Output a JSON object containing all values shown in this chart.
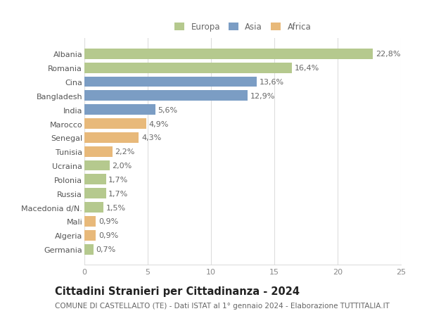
{
  "countries": [
    "Albania",
    "Romania",
    "Cina",
    "Bangladesh",
    "India",
    "Marocco",
    "Senegal",
    "Tunisia",
    "Ucraina",
    "Polonia",
    "Russia",
    "Macedonia d/N.",
    "Mali",
    "Algeria",
    "Germania"
  ],
  "values": [
    22.8,
    16.4,
    13.6,
    12.9,
    5.6,
    4.9,
    4.3,
    2.2,
    2.0,
    1.7,
    1.7,
    1.5,
    0.9,
    0.9,
    0.7
  ],
  "labels": [
    "22,8%",
    "16,4%",
    "13,6%",
    "12,9%",
    "5,6%",
    "4,9%",
    "4,3%",
    "2,2%",
    "2,0%",
    "1,7%",
    "1,7%",
    "1,5%",
    "0,9%",
    "0,9%",
    "0,7%"
  ],
  "continents": [
    "Europa",
    "Europa",
    "Asia",
    "Asia",
    "Asia",
    "Africa",
    "Africa",
    "Africa",
    "Europa",
    "Europa",
    "Europa",
    "Europa",
    "Africa",
    "Africa",
    "Europa"
  ],
  "colors": {
    "Europa": "#b5c98e",
    "Asia": "#7b9dc4",
    "Africa": "#e8b97a"
  },
  "legend_labels": [
    "Europa",
    "Asia",
    "Africa"
  ],
  "xlim": [
    0,
    25
  ],
  "xticks": [
    0,
    5,
    10,
    15,
    20,
    25
  ],
  "title": "Cittadini Stranieri per Cittadinanza - 2024",
  "subtitle": "COMUNE DI CASTELLALTO (TE) - Dati ISTAT al 1° gennaio 2024 - Elaborazione TUTTITALIA.IT",
  "bg_color": "#ffffff",
  "grid_color": "#dddddd",
  "bar_height": 0.75,
  "label_fontsize": 8.0,
  "tick_fontsize": 8.0,
  "title_fontsize": 10.5,
  "subtitle_fontsize": 7.5
}
